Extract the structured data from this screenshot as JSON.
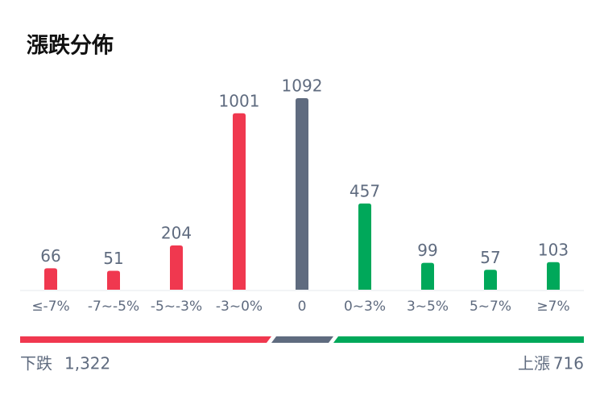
{
  "chart_data": {
    "type": "bar",
    "title": "漲跌分佈",
    "categories": [
      "≤-7%",
      "-7~-5%",
      "-5~-3%",
      "-3~0%",
      "0",
      "0~3%",
      "3~5%",
      "5~7%",
      "≥7%"
    ],
    "values": [
      66,
      51,
      204,
      1001,
      1092,
      457,
      99,
      57,
      103
    ],
    "colors": [
      "#f0384f",
      "#f0384f",
      "#f0384f",
      "#f0384f",
      "#5f6b7f",
      "#00a85a",
      "#00a85a",
      "#00a85a",
      "#00a85a"
    ]
  },
  "summary": {
    "down_label": "下跌",
    "down_value": "1,322",
    "up_label": "上漲",
    "up_value": "716"
  }
}
